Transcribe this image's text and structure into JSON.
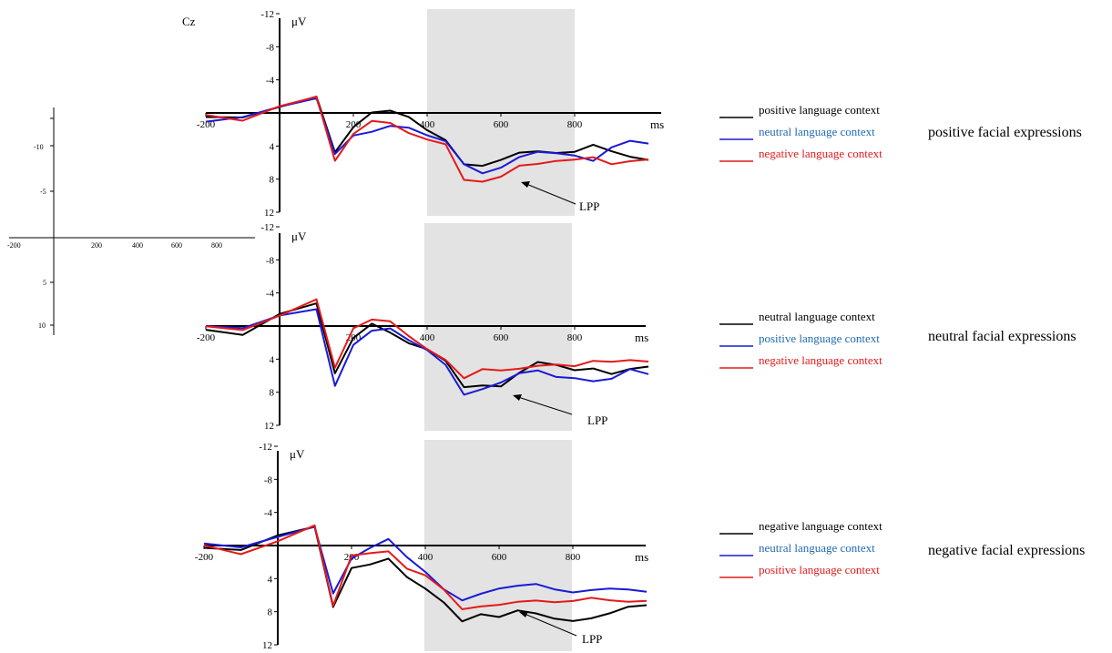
{
  "figure": {
    "electrode": "Cz",
    "y_unit": "μV",
    "x_unit": "ms",
    "annotation": "LPP"
  },
  "colors": {
    "black": "#000000",
    "blue": "#1a1ad6",
    "red": "#e41a1a",
    "blue_text": "#1f6bb5",
    "red_text": "#e41a1a",
    "shade": "#e3e3e3"
  },
  "inset_axes": {
    "x_ticks": [
      "-200",
      "200",
      "400",
      "600",
      "800"
    ],
    "y_ticks": [
      "-10",
      "-5",
      "5",
      "10"
    ]
  },
  "chart_data": [
    {
      "type": "line",
      "panel": "top",
      "condition_label": "positive facial expressions",
      "y_axis_inverted": true,
      "xlim": [
        -200,
        1000
      ],
      "ylim": [
        -12,
        12
      ],
      "x_ticks": [
        -200,
        200,
        400,
        600,
        800
      ],
      "y_ticks": [
        -12,
        -8,
        -4,
        4,
        8,
        12
      ],
      "shaded_window_ms": [
        400,
        800
      ],
      "x": [
        -200,
        -100,
        0,
        100,
        150,
        200,
        250,
        300,
        350,
        400,
        450,
        500,
        550,
        600,
        650,
        700,
        750,
        800,
        850,
        900,
        950,
        1000
      ],
      "series": [
        {
          "name": "positive language context",
          "color": "black",
          "values": [
            0.5,
            0.3,
            -1,
            -2,
            5,
            2,
            0,
            -0.5,
            0.2,
            2,
            3.5,
            6.5,
            6.5,
            5.5,
            4.5,
            4.5,
            5,
            5,
            4,
            4.5,
            5,
            5.5
          ]
        },
        {
          "name": "neutral language context",
          "color": "blue",
          "values": [
            0.8,
            0.5,
            -0.5,
            -1.5,
            5,
            2.5,
            2,
            1.5,
            2,
            3,
            3.5,
            6,
            7,
            6.5,
            5.5,
            5,
            5,
            5,
            5.5,
            4,
            3.5,
            4
          ]
        },
        {
          "name": "negative language context",
          "color": "red",
          "values": [
            0.5,
            1.2,
            -0.8,
            -2.2,
            5.5,
            2.5,
            1.2,
            1.5,
            2.5,
            3,
            3.5,
            8,
            8.5,
            8,
            6.5,
            6,
            5.5,
            5.5,
            5.5,
            6.5,
            6,
            5.5
          ]
        }
      ]
    },
    {
      "type": "line",
      "panel": "middle",
      "condition_label": "neutral facial expressions",
      "y_axis_inverted": true,
      "xlim": [
        -200,
        1000
      ],
      "ylim": [
        -12,
        12
      ],
      "x_ticks": [
        -200,
        200,
        400,
        600,
        800
      ],
      "y_ticks": [
        -12,
        -8,
        -4,
        4,
        8,
        12
      ],
      "shaded_window_ms": [
        400,
        800
      ],
      "x": [
        -200,
        -100,
        0,
        100,
        150,
        200,
        250,
        300,
        350,
        400,
        450,
        500,
        550,
        600,
        650,
        700,
        750,
        800,
        850,
        900,
        950,
        1000
      ],
      "series": [
        {
          "name": "neutral language context",
          "color": "black",
          "values": [
            0.2,
            0.8,
            -1.5,
            -2.5,
            6,
            1.5,
            -0.5,
            0.5,
            2,
            3,
            4.5,
            7.5,
            7,
            7,
            5.5,
            4.5,
            5,
            5.5,
            5,
            5.5,
            5,
            5
          ]
        },
        {
          "name": "positive language context",
          "color": "blue",
          "values": [
            0,
            0.5,
            -1,
            -2,
            7,
            2,
            0.5,
            0.5,
            2,
            3,
            4.5,
            8,
            7.5,
            7,
            6,
            5.5,
            6,
            6,
            6.5,
            6.5,
            5.5,
            6
          ]
        },
        {
          "name": "negative language context",
          "color": "red",
          "values": [
            0.3,
            0.5,
            -1.5,
            -3.5,
            5,
            0.5,
            -0.5,
            -0.5,
            1,
            2.5,
            4,
            6.5,
            5.5,
            5.5,
            5,
            4.5,
            4.5,
            5,
            4.5,
            4.5,
            4,
            4
          ]
        }
      ]
    },
    {
      "type": "line",
      "panel": "bottom",
      "condition_label": "negative facial expressions",
      "y_axis_inverted": true,
      "xlim": [
        -200,
        1000
      ],
      "ylim": [
        -12,
        12
      ],
      "x_ticks": [
        -200,
        200,
        400,
        600,
        800
      ],
      "y_ticks": [
        -12,
        -8,
        -4,
        4,
        8,
        12
      ],
      "shaded_window_ms": [
        400,
        800
      ],
      "x": [
        -200,
        -100,
        0,
        100,
        150,
        200,
        250,
        300,
        350,
        400,
        450,
        500,
        550,
        600,
        650,
        700,
        750,
        800,
        850,
        900,
        950,
        1000
      ],
      "series": [
        {
          "name": "negative language context",
          "color": "black",
          "values": [
            0,
            0.5,
            -1,
            -2,
            7.5,
            2.5,
            2,
            1.5,
            4,
            5.5,
            7,
            9,
            8,
            8.5,
            8,
            8.5,
            9,
            9,
            8.5,
            8,
            7.5,
            7.5
          ]
        },
        {
          "name": "neutral language context",
          "color": "blue",
          "values": [
            0,
            0.5,
            -1,
            -2.5,
            5.5,
            1.5,
            0.5,
            -0.5,
            1.5,
            3,
            5,
            6.5,
            6,
            5.5,
            5,
            4.5,
            5,
            5.5,
            5.5,
            5.5,
            5.5,
            5.5
          ]
        },
        {
          "name": "positive language context",
          "color": "red",
          "values": [
            0,
            0.8,
            -0.8,
            -2.5,
            7.5,
            1.5,
            1,
            0.5,
            2.5,
            3.5,
            5.5,
            8,
            7.5,
            7,
            6.5,
            6.5,
            7,
            7,
            6.5,
            6.5,
            6.5,
            6.5
          ]
        }
      ]
    }
  ]
}
